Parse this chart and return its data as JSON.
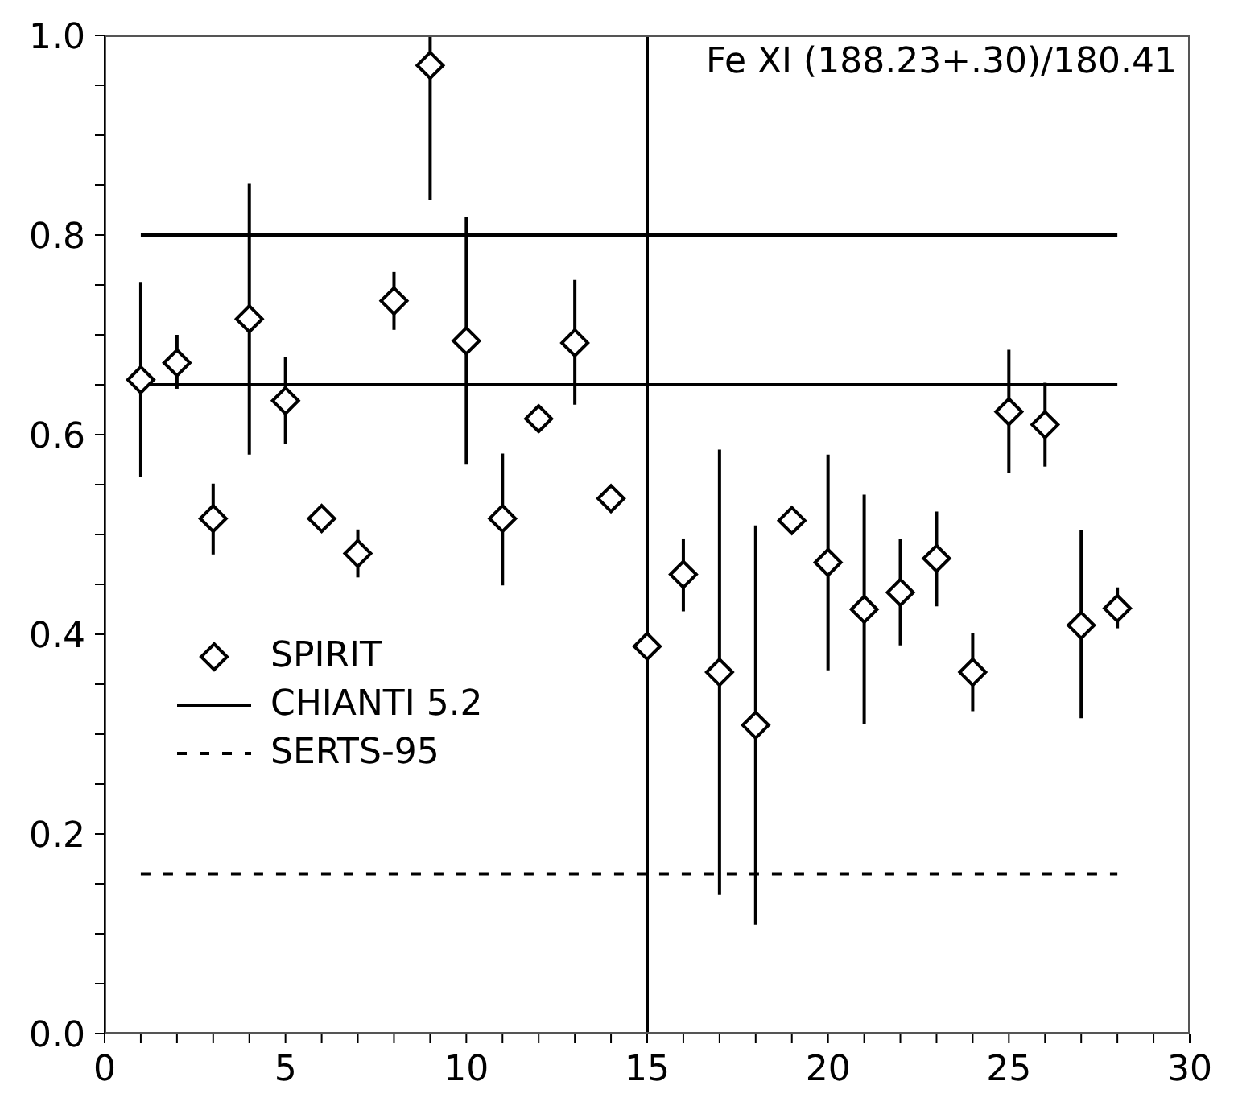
{
  "chart_data": {
    "type": "scatter",
    "title": "Fe XI (188.23+.30)/180.41",
    "x": [
      1,
      2,
      3,
      4,
      5,
      6,
      7,
      8,
      9,
      10,
      11,
      12,
      13,
      14,
      15,
      16,
      17,
      18,
      19,
      20,
      21,
      22,
      23,
      24,
      25,
      26,
      27,
      28
    ],
    "series": [
      {
        "name": "SPIRIT",
        "type": "scatter",
        "color": "#000000",
        "marker": "diamond",
        "values": [
          0.655,
          0.672,
          0.516,
          0.716,
          0.634,
          0.516,
          0.481,
          0.734,
          0.97,
          0.694,
          0.516,
          0.616,
          0.692,
          0.536,
          0.388,
          0.46,
          0.362,
          0.309,
          0.514,
          0.472,
          0.425,
          0.442,
          0.476,
          0.362,
          0.623,
          0.61,
          0.409,
          0.426
        ],
        "errors": [
          [
            0.558,
            0.753
          ],
          [
            0.646,
            0.7
          ],
          [
            0.48,
            0.551
          ],
          [
            0.58,
            0.852
          ],
          [
            0.591,
            0.678
          ],
          0.01,
          [
            0.457,
            0.505
          ],
          [
            0.705,
            0.763
          ],
          [
            0.835,
            1.0
          ],
          [
            0.57,
            0.818
          ],
          [
            0.449,
            0.581
          ],
          0.01,
          [
            0.63,
            0.755
          ],
          0.01,
          null,
          [
            0.423,
            0.496
          ],
          [
            0.139,
            0.585
          ],
          [
            0.109,
            0.509
          ],
          0.01,
          [
            0.364,
            0.58
          ],
          [
            0.31,
            0.54
          ],
          [
            0.389,
            0.496
          ],
          [
            0.428,
            0.523
          ],
          [
            0.323,
            0.401
          ],
          [
            0.562,
            0.685
          ],
          [
            0.568,
            0.652
          ],
          [
            0.316,
            0.504
          ],
          [
            0.406,
            0.447
          ]
        ]
      },
      {
        "name": "CHIANTI 5.2",
        "type": "line",
        "color": "#000000",
        "line_style": "solid",
        "values": [
          0.8,
          0.8,
          0.8,
          0.8,
          0.8,
          0.8,
          0.8,
          0.8,
          0.8,
          0.8,
          0.8,
          0.8,
          0.8,
          0.8,
          0.8,
          0.8,
          0.8,
          0.8,
          0.8,
          0.8,
          0.8,
          0.8,
          0.8,
          0.8,
          0.8,
          0.8,
          0.8,
          0.8
        ]
      },
      {
        "type": "line",
        "color": "#000000",
        "line_style": "solid",
        "values": [
          0.65,
          0.65,
          0.65,
          0.65,
          0.65,
          0.65,
          0.65,
          0.65,
          0.65,
          0.65,
          0.65,
          0.65,
          0.65,
          0.65,
          0.65,
          0.65,
          0.65,
          0.65,
          0.65,
          0.65,
          0.65,
          0.65,
          0.65,
          0.65,
          0.65,
          0.65,
          0.65,
          0.65
        ]
      },
      {
        "name": "SERTS-95",
        "type": "line",
        "color": "#000000",
        "line_style": "dashed",
        "values": [
          0.16,
          0.16,
          0.16,
          0.16,
          0.16,
          0.16,
          0.16,
          0.16,
          0.16,
          0.16,
          0.16,
          0.16,
          0.16,
          0.16,
          0.16,
          0.16,
          0.16,
          0.16,
          0.16,
          0.16,
          0.16,
          0.16,
          0.16,
          0.16,
          0.16,
          0.16,
          0.16,
          0.16
        ]
      }
    ],
    "ref_lines": [
      {
        "axis": "x",
        "value": 15,
        "color": "#000000"
      }
    ],
    "xlim": [
      0,
      30
    ],
    "xticks": [
      0,
      {
        "value": 1,
        "label": null
      },
      {
        "value": 2,
        "label": null
      },
      {
        "value": 3,
        "label": null
      },
      {
        "value": 4,
        "label": null
      },
      5,
      {
        "value": 6,
        "label": null
      },
      {
        "value": 7,
        "label": null
      },
      {
        "value": 8,
        "label": null
      },
      {
        "value": 9,
        "label": null
      },
      10,
      {
        "value": 11,
        "label": null
      },
      {
        "value": 12,
        "label": null
      },
      {
        "value": 13,
        "label": null
      },
      {
        "value": 14,
        "label": null
      },
      15,
      {
        "value": 16,
        "label": null
      },
      {
        "value": 17,
        "label": null
      },
      {
        "value": 18,
        "label": null
      },
      {
        "value": 19,
        "label": null
      },
      20,
      {
        "value": 21,
        "label": null
      },
      {
        "value": 22,
        "label": null
      },
      {
        "value": 23,
        "label": null
      },
      {
        "value": 24,
        "label": null
      },
      25,
      {
        "value": 26,
        "label": null
      },
      {
        "value": 27,
        "label": null
      },
      {
        "value": 28,
        "label": null
      },
      {
        "value": 29,
        "label": null
      },
      30
    ],
    "ylim": [
      0,
      1
    ],
    "yticks": [
      {
        "value": 0,
        "label": "0.0"
      },
      {
        "value": 0.05,
        "label": null
      },
      {
        "value": 0.1,
        "label": null
      },
      {
        "value": 0.15,
        "label": null
      },
      0.2,
      {
        "value": 0.25,
        "label": null
      },
      0.4,
      {
        "value": 0.3,
        "label": null
      },
      {
        "value": 0.35,
        "label": null
      },
      {
        "value": 0.45,
        "label": null
      },
      0.6,
      {
        "value": 0.5,
        "label": null
      },
      {
        "value": 0.55,
        "label": null
      },
      {
        "value": 0.65,
        "label": null
      },
      {
        "value": 0.7,
        "label": null
      },
      {
        "value": 0.75,
        "label": null
      },
      0.8,
      {
        "value": 0.85,
        "label": null
      },
      {
        "value": 0.9,
        "label": null
      },
      {
        "value": 0.95,
        "label": null
      },
      {
        "value": 1,
        "label": "1.0"
      }
    ],
    "grid": false,
    "legend": "left"
  }
}
